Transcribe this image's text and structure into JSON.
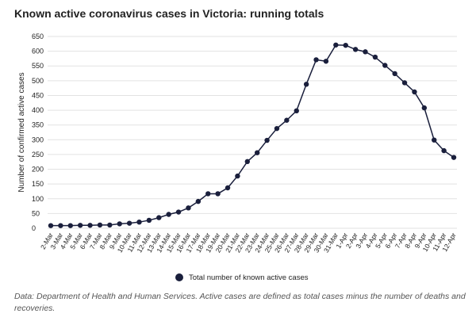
{
  "chart_data": {
    "type": "line",
    "title": "Known active coronavirus cases in Victoria: running totals",
    "y_label": "Number of confirmed active cases",
    "categories": [
      "2-Mar",
      "3-Mar",
      "4-Mar",
      "5-Mar",
      "6-Mar",
      "7-Mar",
      "8-Mar",
      "9-Mar",
      "10-Mar",
      "11-Mar",
      "12-Mar",
      "13-Mar",
      "14-Mar",
      "15-Mar",
      "16-Mar",
      "17-Mar",
      "18-Mar",
      "19-Mar",
      "20-Mar",
      "21-Mar",
      "22-Mar",
      "23-Mar",
      "24-Mar",
      "25-Mar",
      "26-Mar",
      "27-Mar",
      "28-Mar",
      "29-Mar",
      "30-Mar",
      "31-Mar",
      "1-Apr",
      "2-Apr",
      "3-Apr",
      "4-Apr",
      "5-Apr",
      "6-Apr",
      "7-Apr",
      "8-Apr",
      "9-Apr",
      "10-Apr",
      "11-Apr",
      "12-Apr"
    ],
    "series": [
      {
        "name": "Total number of known active cases",
        "color": "#1a1f3c",
        "values": [
          9,
          9,
          9,
          10,
          10,
          11,
          11,
          15,
          17,
          21,
          27,
          36,
          47,
          55,
          69,
          91,
          117,
          117,
          137,
          177,
          226,
          256,
          298,
          338,
          366,
          398,
          488,
          571,
          566,
          621,
          620,
          606,
          598,
          580,
          552,
          524,
          493,
          462,
          408,
          299,
          263,
          240
        ]
      }
    ],
    "ylim": [
      0,
      650
    ],
    "yticks": [
      0,
      50,
      100,
      150,
      200,
      250,
      300,
      350,
      400,
      450,
      500,
      550,
      600,
      650
    ],
    "grid": true,
    "note": "Data: Department of Health and Human Services. Active cases are defined as total cases minus the number of deaths and recoveries."
  }
}
